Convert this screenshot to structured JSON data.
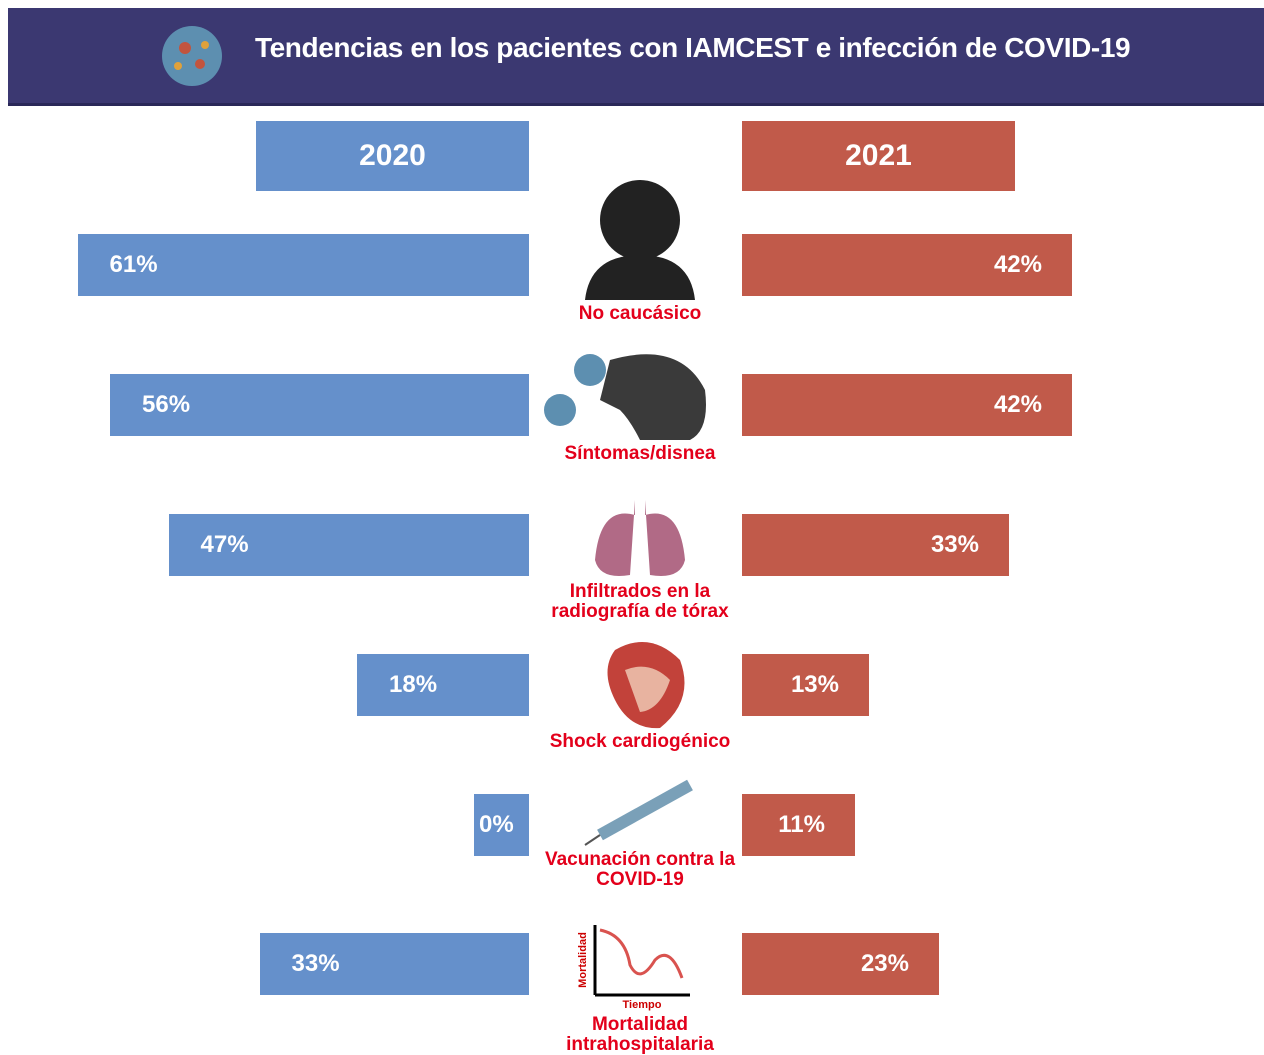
{
  "chart_data": {
    "type": "butterfly",
    "title": "Tendencias en los pacientes con IAMCEST e infección de COVID-19",
    "categories": [
      "No caucásico",
      "Síntomas/disnea",
      "Infiltrados en la radiografía de tórax",
      "Shock cardiogénico",
      "Vacunación contra la COVID-19",
      "Mortalidad intrahospitalaria"
    ],
    "series": [
      {
        "name": "2020",
        "color": "#6590cb",
        "values": [
          61,
          56,
          47,
          18,
          0,
          33
        ],
        "value_labels": [
          "61%",
          "56%",
          "47%",
          "18%",
          "0%",
          "33%"
        ]
      },
      {
        "name": "2021",
        "color": "#c15a4a",
        "values": [
          42,
          42,
          33,
          13,
          11,
          23
        ],
        "value_labels": [
          "42%",
          "42%",
          "33%",
          "13%",
          "11%",
          "23%"
        ]
      }
    ],
    "annotations": {
      "icon_y_label": "Mortalidad",
      "icon_x_label": "Tiempo"
    }
  }
}
